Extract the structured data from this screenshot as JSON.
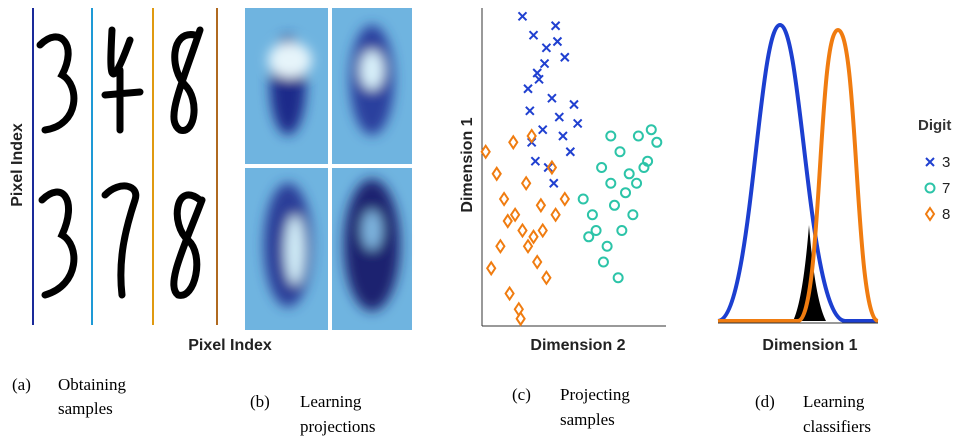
{
  "figure": {
    "panels": [
      {
        "label": "(a)",
        "caption": [
          "Obtaining",
          "samples"
        ],
        "x_label": "Pixel Index",
        "y_label": "Pixel Index"
      },
      {
        "label": "(b)",
        "caption": [
          "Learning",
          "projections"
        ]
      },
      {
        "label": "(c)",
        "caption": [
          "Projecting",
          "samples"
        ]
      },
      {
        "label": "(d)",
        "caption": [
          "Learning",
          "classifiers"
        ],
        "x_label": "Dimension 1"
      }
    ]
  },
  "chart_data": {
    "type": "scatter",
    "x_label": "Dimension 2",
    "y_label": "Dimension 1",
    "xlim": [
      0,
      100
    ],
    "ylim": [
      0,
      100
    ],
    "legend_title": "Digit",
    "series": [
      {
        "name": "3",
        "color": "#2040d0",
        "marker": "x",
        "x": [
          22,
          28,
          35,
          40,
          45,
          30,
          25,
          38,
          50,
          42,
          33,
          27,
          48,
          36,
          31,
          44,
          39,
          26,
          52,
          34,
          29,
          41
        ],
        "y": [
          98,
          92,
          88,
          95,
          85,
          80,
          75,
          72,
          70,
          66,
          62,
          58,
          55,
          50,
          78,
          60,
          45,
          68,
          64,
          83,
          52,
          90
        ]
      },
      {
        "name": "7",
        "color": "#2cc4a8",
        "marker": "o",
        "x": [
          55,
          60,
          65,
          70,
          75,
          80,
          85,
          90,
          95,
          62,
          68,
          72,
          78,
          82,
          88,
          58,
          66,
          74,
          84,
          92,
          70,
          76
        ],
        "y": [
          40,
          35,
          50,
          45,
          55,
          48,
          60,
          52,
          58,
          30,
          25,
          38,
          42,
          35,
          50,
          28,
          20,
          15,
          45,
          62,
          60,
          30
        ]
      },
      {
        "name": "8",
        "color": "#f07c10",
        "marker": "d",
        "x": [
          2,
          8,
          12,
          18,
          22,
          25,
          30,
          35,
          15,
          20,
          28,
          32,
          10,
          5,
          40,
          45,
          38,
          24,
          17,
          27,
          33,
          14,
          21
        ],
        "y": [
          55,
          48,
          40,
          35,
          30,
          25,
          20,
          15,
          10,
          5,
          28,
          38,
          25,
          18,
          35,
          40,
          50,
          45,
          58,
          60,
          30,
          33,
          2
        ]
      }
    ]
  }
}
